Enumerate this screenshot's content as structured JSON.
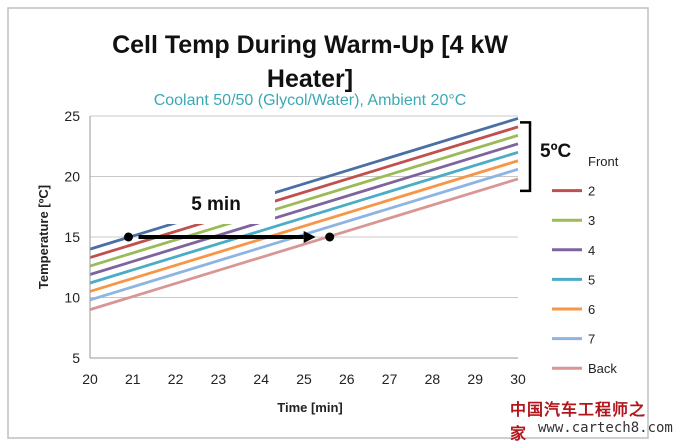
{
  "chart_data": {
    "type": "line",
    "title": "Cell Temp During Warm-Up [4 kW Heater]",
    "subtitle": "Coolant 50/50 (Glycol/Water), Ambient 20°C",
    "xlabel": "Time [min]",
    "ylabel": "Temperature [ºC]",
    "xlim": [
      20,
      30
    ],
    "ylim": [
      5,
      25
    ],
    "xticks": [
      20,
      21,
      22,
      23,
      24,
      25,
      26,
      27,
      28,
      29,
      30
    ],
    "yticks": [
      5,
      10,
      15,
      20,
      25
    ],
    "grid": "horizontal",
    "legend_position": "right",
    "series": [
      {
        "name": "Front",
        "color": "#4a6fa5",
        "x": [
          20,
          30
        ],
        "y": [
          14.0,
          24.8
        ]
      },
      {
        "name": "2",
        "color": "#c0504d",
        "x": [
          20,
          30
        ],
        "y": [
          13.3,
          24.1
        ]
      },
      {
        "name": "3",
        "color": "#9bbb59",
        "x": [
          20,
          30
        ],
        "y": [
          12.6,
          23.4
        ]
      },
      {
        "name": "4",
        "color": "#7e649e",
        "x": [
          20,
          30
        ],
        "y": [
          11.9,
          22.7
        ]
      },
      {
        "name": "5",
        "color": "#4bacc6",
        "x": [
          20,
          30
        ],
        "y": [
          11.2,
          22.0
        ]
      },
      {
        "name": "6",
        "color": "#f79646",
        "x": [
          20,
          30
        ],
        "y": [
          10.5,
          21.3
        ]
      },
      {
        "name": "7",
        "color": "#8eb4e3",
        "x": [
          20,
          30
        ],
        "y": [
          9.8,
          20.6
        ]
      },
      {
        "name": "Back",
        "color": "#d99694",
        "x": [
          20,
          30
        ],
        "y": [
          9.0,
          19.8
        ]
      }
    ],
    "annotations": [
      {
        "label": "5 min",
        "type": "arrow",
        "from": [
          20.9,
          15
        ],
        "to": [
          25.6,
          15
        ]
      },
      {
        "label": "5ºC",
        "type": "bracket",
        "x": 30,
        "range": [
          19.8,
          24.8
        ]
      }
    ]
  },
  "watermark": {
    "chinese": "中国汽车工程师之家",
    "url": "www.cartech8.com"
  }
}
